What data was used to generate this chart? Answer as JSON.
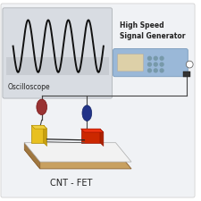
{
  "bg_outer_color": "#f0f2f5",
  "bg_inner_color": "#e4e8ec",
  "osc_box_color": "#d8dce2",
  "osc_box_band_color": "#c8ccd2",
  "osc_label": "Oscilloscope",
  "sine_color": "#111111",
  "sine_cycles": 4.5,
  "sig_gen_body_color": "#9ab8d8",
  "sig_gen_screen_color": "#ddd0a8",
  "sig_gen_label": "High Speed\nSignal Generator",
  "wire_color": "#444444",
  "red_connector": "#993333",
  "blue_connector": "#223388",
  "small_dot_color": "#333333",
  "chip_base_color": "#c8a060",
  "chip_base_side_color": "#a07840",
  "chip_surface_color": "#eeeeee",
  "chip_electrode_yellow": "#e8c020",
  "chip_electrode_red": "#cc2800",
  "chip_cnt_color": "#222222",
  "cnt_fet_label": "CNT - FET"
}
